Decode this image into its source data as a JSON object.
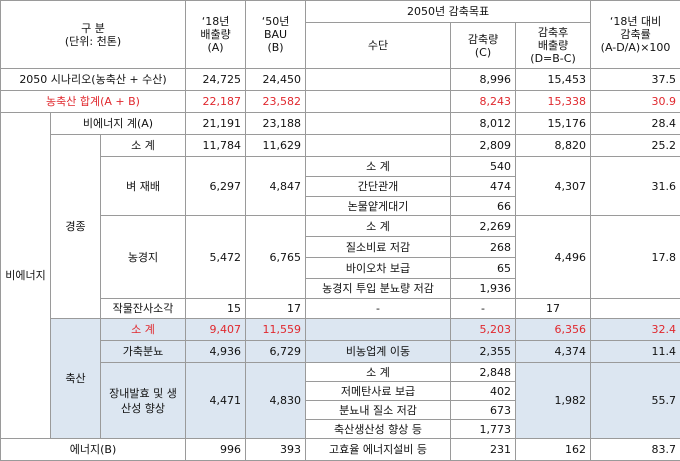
{
  "header": {
    "category": [
      "구 분",
      "(단위: 천톤)"
    ],
    "emission_2018": [
      "‘18년",
      "배출량",
      "(A)"
    ],
    "bau_2050": [
      "‘50년",
      "BAU",
      "(B)"
    ],
    "target": "2050년 감축목표",
    "measure": "수단",
    "reduction": [
      "감축량",
      "(C)"
    ],
    "after": [
      "감축후",
      "배출량",
      "(D=B-C)"
    ],
    "rate": [
      "‘18년 대비",
      "감축률",
      "(A-D/A)×100"
    ]
  },
  "groups": {
    "non_energy": "비에너지",
    "crop": "경종",
    "livestock": "축산"
  },
  "rows": [
    {
      "label": "2050 시나리오(농축산 + 수산)",
      "e18": "24,725",
      "bau": "24,450",
      "reduction": "8,996",
      "after": "15,453",
      "rate": "37.5"
    },
    {
      "label": "농축산 합계(A + B)",
      "e18": "22,187",
      "bau": "23,582",
      "reduction": "8,243",
      "after": "15,338",
      "rate": "30.9"
    },
    {
      "label": "비에너지 계(A)",
      "e18": "21,191",
      "bau": "23,188",
      "reduction": "8,012",
      "after": "15,176",
      "rate": "28.4"
    },
    {
      "label": "소 계",
      "e18": "11,784",
      "bau": "11,629",
      "reduction": "2,809",
      "after": "8,820",
      "rate": "25.2"
    },
    {
      "label": "벼 재배",
      "e18": "6,297",
      "bau": "4,847",
      "after": "4,307",
      "rate": "31.6",
      "measures": [
        {
          "name": "소 계",
          "reduction": "540"
        },
        {
          "name": "간단관개",
          "reduction": "474"
        },
        {
          "name": "논물얕게대기",
          "reduction": "66"
        }
      ]
    },
    {
      "label": "농경지",
      "e18": "5,472",
      "bau": "6,765",
      "after": "4,496",
      "rate": "17.8",
      "measures": [
        {
          "name": "소 계",
          "reduction": "2,269"
        },
        {
          "name": "질소비료 저감",
          "reduction": "268"
        },
        {
          "name": "바이오차 보급",
          "reduction": "65"
        },
        {
          "name": "농경지 투입 분뇨량 저감",
          "reduction": "1,936"
        }
      ]
    },
    {
      "label": "작물잔사소각",
      "e18": "15",
      "bau": "17",
      "measure": "-",
      "reduction": "-",
      "after": "17"
    },
    {
      "label": "소 계",
      "e18": "9,407",
      "bau": "11,559",
      "reduction": "5,203",
      "after": "6,356",
      "rate": "32.4"
    },
    {
      "label": "가축분뇨",
      "e18": "4,936",
      "bau": "6,729",
      "measure": "비농업계 이동",
      "reduction": "2,355",
      "after": "4,374",
      "rate": "11.4"
    },
    {
      "label": "장내발효 및 생산성 향상",
      "e18": "4,471",
      "bau": "4,830",
      "after": "1,982",
      "rate": "55.7",
      "measures": [
        {
          "name": "소 계",
          "reduction": "2,848"
        },
        {
          "name": "저메탄사료 보급",
          "reduction": "402"
        },
        {
          "name": "분뇨내 질소 저감",
          "reduction": "673"
        },
        {
          "name": "축산생산성 향상 등",
          "reduction": "1,773"
        }
      ]
    },
    {
      "label": "에너지(B)",
      "e18": "996",
      "bau": "393",
      "measure": "고효율 에너지설비 등",
      "reduction": "231",
      "after": "162",
      "rate": "83.7"
    }
  ]
}
